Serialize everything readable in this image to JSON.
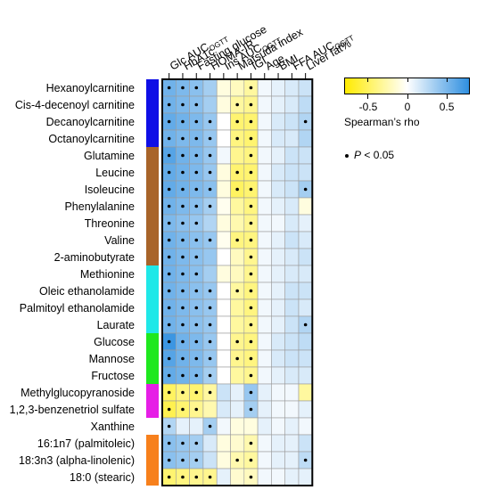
{
  "chart_data": {
    "type": "heatmap",
    "rows": [
      "Hexanoylcarnitine",
      "Cis-4-decenoyl carnitine",
      "Decanoylcarnitine",
      "Octanoylcarnitine",
      "Glutamine",
      "Leucine",
      "Isoleucine",
      "Phenylalanine",
      "Threonine",
      "Valine",
      "2-aminobutyrate",
      "Methionine",
      "Oleic ethanolamide",
      "Palmitoyl ethanolamide",
      "Laurate",
      "Glucose",
      "Mannose",
      "Fructose",
      "Methylglucopyranoside",
      "1,2,3-benzenetriol sulfate",
      "Xanthine",
      "16:1n7 (palmitoleic)",
      "18:3n3 (alpha-linolenic)",
      "18:0 (stearic)"
    ],
    "columns": [
      {
        "main": "Glc AUC",
        "sub": "OGTT"
      },
      {
        "main": "HbA1c",
        "sub": ""
      },
      {
        "main": "Fasting glucose",
        "sub": ""
      },
      {
        "main": "HOMA-IR",
        "sub": ""
      },
      {
        "main": "Ins AUC",
        "sub": "OGTT"
      },
      {
        "main": "Matsuda index",
        "sub": ""
      },
      {
        "main": "IGI",
        "sub": ""
      },
      {
        "main": "Age",
        "sub": ""
      },
      {
        "main": "BMI",
        "sub": ""
      },
      {
        "main": "FFA AUC",
        "sub": "OGTT"
      },
      {
        "main": "Liver fat%",
        "sub": ""
      }
    ],
    "values": [
      [
        0.55,
        0.5,
        0.45,
        0.35,
        -0.1,
        -0.2,
        -0.3,
        0.05,
        0.1,
        0.15,
        0.2
      ],
      [
        0.55,
        0.5,
        0.45,
        0.35,
        -0.1,
        -0.3,
        -0.35,
        0.05,
        0.1,
        0.15,
        0.25
      ],
      [
        0.6,
        0.55,
        0.5,
        0.4,
        0,
        -0.45,
        -0.45,
        0.05,
        0.15,
        0.2,
        0.3
      ],
      [
        0.55,
        0.5,
        0.5,
        0.4,
        0,
        -0.4,
        -0.45,
        0.05,
        0.15,
        0.15,
        0.3
      ],
      [
        0.65,
        0.55,
        0.5,
        0.4,
        0.05,
        -0.35,
        -0.4,
        0.05,
        0.1,
        0.2,
        0.2
      ],
      [
        0.6,
        0.55,
        0.5,
        0.4,
        -0.1,
        -0.45,
        -0.45,
        0.05,
        0.15,
        0.2,
        0.2
      ],
      [
        0.6,
        0.55,
        0.5,
        0.45,
        -0.1,
        -0.5,
        -0.45,
        0.05,
        0.15,
        0.2,
        0.35
      ],
      [
        0.55,
        0.5,
        0.45,
        0.35,
        -0.05,
        -0.3,
        -0.4,
        0.05,
        0.1,
        0.15,
        -0.1
      ],
      [
        0.5,
        0.45,
        0.4,
        0.3,
        -0.1,
        -0.25,
        -0.35,
        0.05,
        0.05,
        0.15,
        0.1
      ],
      [
        0.55,
        0.5,
        0.45,
        0.4,
        -0.05,
        -0.4,
        -0.4,
        0.05,
        0.1,
        0.2,
        0.15
      ],
      [
        0.55,
        0.5,
        0.45,
        0.4,
        0,
        -0.2,
        -0.35,
        0.05,
        0.1,
        0.15,
        0.2
      ],
      [
        0.55,
        0.5,
        0.45,
        0.35,
        -0.1,
        -0.2,
        -0.35,
        0.05,
        0.1,
        0.15,
        0.15
      ],
      [
        0.55,
        0.5,
        0.45,
        0.4,
        0,
        -0.3,
        -0.4,
        0.05,
        0.1,
        0.2,
        0.2
      ],
      [
        0.55,
        0.5,
        0.45,
        0.4,
        0,
        -0.3,
        -0.4,
        0.05,
        0.1,
        0.2,
        0.15
      ],
      [
        0.55,
        0.5,
        0.45,
        0.4,
        0,
        -0.3,
        -0.35,
        0.05,
        0.1,
        0.2,
        0.3
      ],
      [
        0.75,
        0.55,
        0.5,
        0.4,
        0,
        -0.35,
        -0.4,
        0.05,
        0.15,
        0.2,
        0.25
      ],
      [
        0.65,
        0.55,
        0.5,
        0.4,
        0,
        -0.35,
        -0.4,
        0.05,
        0.15,
        0.2,
        0.2
      ],
      [
        0.6,
        0.55,
        0.5,
        0.35,
        0,
        -0.3,
        -0.35,
        0.05,
        0.1,
        0.15,
        0.15
      ],
      [
        -0.5,
        -0.4,
        -0.45,
        -0.3,
        0.2,
        0.1,
        0.4,
        0.1,
        0.05,
        0.05,
        -0.3
      ],
      [
        -0.55,
        -0.45,
        -0.35,
        -0.25,
        0.15,
        0.1,
        0.35,
        0.1,
        0.05,
        0.05,
        0.1
      ],
      [
        0.3,
        0.1,
        0.1,
        0.35,
        0.05,
        -0.1,
        -0.1,
        0.1,
        0.05,
        0.1,
        0.05
      ],
      [
        0.45,
        0.4,
        0.35,
        0.15,
        -0.1,
        -0.15,
        -0.25,
        0.05,
        0.1,
        0.1,
        0.2
      ],
      [
        0.45,
        0.4,
        0.35,
        0.2,
        -0.1,
        -0.25,
        -0.3,
        0.05,
        0.1,
        0.1,
        0.25
      ],
      [
        -0.45,
        -0.4,
        -0.35,
        -0.35,
        0.1,
        -0.15,
        -0.2,
        0.05,
        0.05,
        0.1,
        0.1
      ]
    ],
    "significant": [
      [
        0,
        1,
        2,
        6
      ],
      [
        0,
        1,
        2,
        5,
        6
      ],
      [
        0,
        1,
        2,
        3,
        5,
        6,
        10
      ],
      [
        0,
        1,
        2,
        3,
        5,
        6
      ],
      [
        0,
        1,
        2,
        3,
        6
      ],
      [
        0,
        1,
        2,
        3,
        5,
        6
      ],
      [
        0,
        1,
        2,
        3,
        5,
        6,
        10
      ],
      [
        0,
        1,
        2,
        3,
        6
      ],
      [
        0,
        1,
        2,
        6
      ],
      [
        0,
        1,
        2,
        3,
        5,
        6
      ],
      [
        0,
        1,
        2,
        6
      ],
      [
        0,
        1,
        2,
        6
      ],
      [
        0,
        1,
        2,
        3,
        5,
        6
      ],
      [
        0,
        1,
        2,
        3,
        6
      ],
      [
        0,
        1,
        2,
        3,
        6,
        10
      ],
      [
        0,
        1,
        2,
        3,
        5,
        6
      ],
      [
        0,
        1,
        2,
        3,
        5,
        6
      ],
      [
        0,
        1,
        2,
        3,
        6
      ],
      [
        0,
        1,
        2,
        3,
        6
      ],
      [
        0,
        1,
        2,
        6
      ],
      [
        0,
        3
      ],
      [
        0,
        1,
        2,
        6
      ],
      [
        0,
        1,
        2,
        5,
        6,
        10
      ],
      [
        0,
        1,
        2,
        3,
        6
      ]
    ],
    "groups": [
      {
        "start": 0,
        "end": 3,
        "color": "#0f0fe6"
      },
      {
        "start": 4,
        "end": 10,
        "color": "#a8642a"
      },
      {
        "start": 11,
        "end": 14,
        "color": "#1fe8e8"
      },
      {
        "start": 15,
        "end": 17,
        "color": "#1ee81e"
      },
      {
        "start": 18,
        "end": 19,
        "color": "#e61ee6"
      },
      {
        "start": 20,
        "end": 20,
        "color": "#ffffff"
      },
      {
        "start": 21,
        "end": 23,
        "color": "#f7801c"
      }
    ],
    "scale": {
      "min": -0.8,
      "max": 0.8,
      "low_color": "#ffeb00",
      "mid_color": "#ffffff",
      "high_color": "#2f8fe0",
      "ticks": [
        -0.5,
        0,
        0.5
      ],
      "tick_labels": [
        "-0.5",
        "0",
        "0.5"
      ],
      "title": "Spearman’s rho"
    },
    "significance_note": {
      "symbol": "•",
      "italic": "P",
      "text": " < 0.05"
    }
  }
}
